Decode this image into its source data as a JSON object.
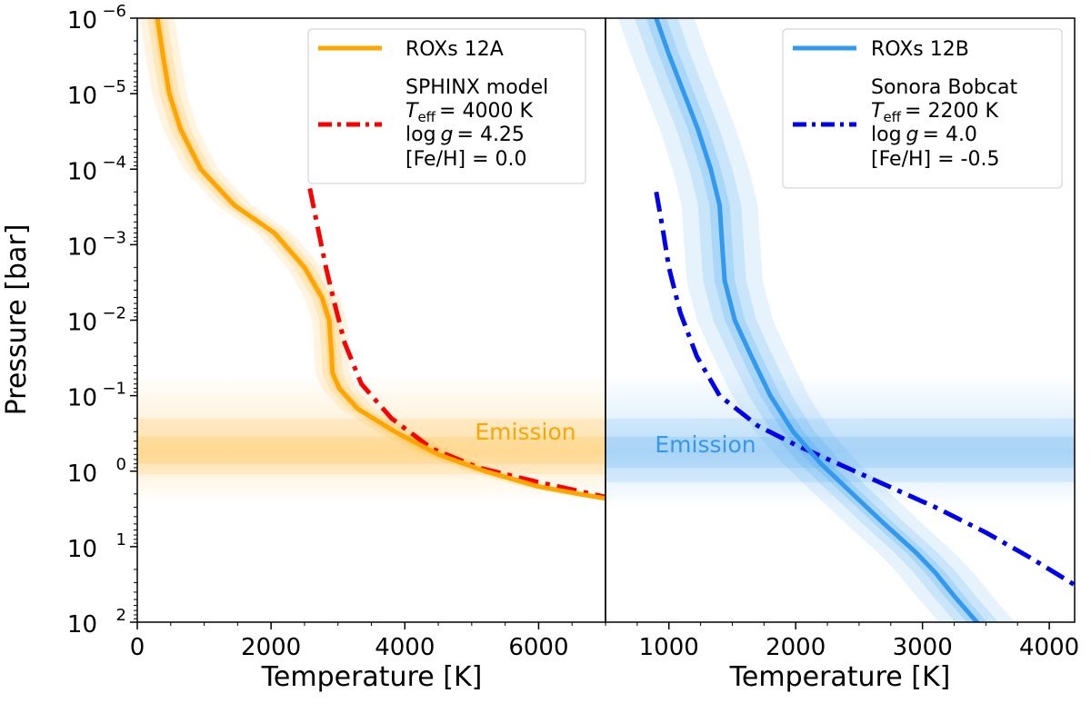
{
  "chart_data": [
    {
      "type": "line",
      "panel": "left",
      "xlabel": "Temperature [K]",
      "ylabel": "Pressure [bar]",
      "xlim": [
        0,
        7000
      ],
      "ylim": [
        1e-06,
        100
      ],
      "yscale": "log",
      "yaxis_inverted": true,
      "xticks": [
        0,
        2000,
        4000,
        6000
      ],
      "xtick_labels": [
        "0",
        "2000",
        "4000",
        "6000"
      ],
      "yticks": [
        1e-06,
        1e-05,
        0.0001,
        0.001,
        0.01,
        0.1,
        1,
        10,
        100
      ],
      "ytick_labels": [
        {
          "base": "10",
          "exp": "−6"
        },
        {
          "base": "10",
          "exp": "−5"
        },
        {
          "base": "10",
          "exp": "−4"
        },
        {
          "base": "10",
          "exp": "−3"
        },
        {
          "base": "10",
          "exp": "−2"
        },
        {
          "base": "10",
          "exp": "−1"
        },
        {
          "base": "10",
          "exp": "0"
        },
        {
          "base": "10",
          "exp": "1"
        },
        {
          "base": "10",
          "exp": "2"
        }
      ],
      "legend_position": "top-right",
      "series": [
        {
          "name": "ROXs 12A",
          "style": "solid",
          "color": "#FFA500",
          "points": [
            [
              300,
              1e-06
            ],
            [
              380,
              3e-06
            ],
            [
              480,
              1e-05
            ],
            [
              650,
              3e-05
            ],
            [
              950,
              0.0001
            ],
            [
              1450,
              0.0003
            ],
            [
              2050,
              0.0007
            ],
            [
              2500,
              0.002
            ],
            [
              2760,
              0.005
            ],
            [
              2870,
              0.01
            ],
            [
              2900,
              0.025
            ],
            [
              2920,
              0.05
            ],
            [
              3020,
              0.08
            ],
            [
              3300,
              0.15
            ],
            [
              3850,
              0.3
            ],
            [
              4500,
              0.6
            ],
            [
              5200,
              1.0
            ],
            [
              6000,
              1.6
            ],
            [
              6600,
              2.0
            ],
            [
              7000,
              2.3
            ]
          ],
          "band_widths": [
            70,
            150,
            260
          ]
        },
        {
          "name": "SPHINX model",
          "style": "dash-dot",
          "color": "#FF0000",
          "points": [
            [
              2580,
              0.00018
            ],
            [
              2700,
              0.0006
            ],
            [
              2820,
              0.002
            ],
            [
              2950,
              0.006
            ],
            [
              3100,
              0.02
            ],
            [
              3350,
              0.07
            ],
            [
              3800,
              0.2
            ],
            [
              4400,
              0.5
            ],
            [
              5100,
              0.9
            ],
            [
              6000,
              1.4
            ],
            [
              7000,
              2.2
            ]
          ]
        }
      ],
      "legend_entries": [
        {
          "name": "ROXs 12A"
        },
        {
          "lines": [
            "SPHINX model",
            "T_eff = 4000 K",
            "log g = 4.25",
            "[Fe/H] = 0.0"
          ]
        }
      ],
      "emission_band": {
        "label": "Emission",
        "center": 0.55,
        "core": [
          0.35,
          0.8
        ],
        "outer": [
          0.2,
          1.1
        ],
        "fade": [
          0.05,
          2.5
        ]
      }
    },
    {
      "type": "line",
      "panel": "right",
      "xlabel": "Temperature [K]",
      "ylabel": "",
      "xlim": [
        500,
        4200
      ],
      "ylim": [
        1e-06,
        100
      ],
      "yscale": "log",
      "yaxis_inverted": true,
      "xticks": [
        1000,
        2000,
        3000,
        4000
      ],
      "xtick_labels": [
        "1000",
        "2000",
        "3000",
        "4000"
      ],
      "legend_position": "top-right",
      "series": [
        {
          "name": "ROXs 12B",
          "style": "solid",
          "color": "#3399EE",
          "points": [
            [
              800,
              5e-07
            ],
            [
              900,
              1e-06
            ],
            [
              1000,
              3e-06
            ],
            [
              1120,
              1e-05
            ],
            [
              1230,
              3e-05
            ],
            [
              1330,
              0.0001
            ],
            [
              1400,
              0.0003
            ],
            [
              1420,
              0.001
            ],
            [
              1440,
              0.003
            ],
            [
              1520,
              0.01
            ],
            [
              1650,
              0.03
            ],
            [
              1800,
              0.1
            ],
            [
              1980,
              0.3
            ],
            [
              2200,
              0.8
            ],
            [
              2450,
              2
            ],
            [
              2700,
              5
            ],
            [
              2950,
              12
            ],
            [
              3100,
              22
            ],
            [
              3250,
              45
            ],
            [
              3450,
              110
            ]
          ],
          "band_widths": [
            80,
            170,
            300
          ]
        },
        {
          "name": "Sonora Bobcat",
          "style": "dash-dot",
          "color": "#0000EE",
          "points": [
            [
              900,
              0.0002
            ],
            [
              950,
              0.0006
            ],
            [
              1000,
              0.002
            ],
            [
              1090,
              0.008
            ],
            [
              1220,
              0.03
            ],
            [
              1400,
              0.1
            ],
            [
              1700,
              0.25
            ],
            [
              2000,
              0.45
            ],
            [
              2300,
              0.75
            ],
            [
              2700,
              1.5
            ],
            [
              3100,
              3
            ],
            [
              3500,
              6.5
            ],
            [
              3850,
              14
            ],
            [
              4200,
              32
            ]
          ]
        }
      ],
      "legend_entries": [
        {
          "name": "ROXs 12B"
        },
        {
          "lines": [
            "Sonora Bobcat",
            "T_eff = 2200 K",
            "log g = 4.0",
            "[Fe/H] = -0.5"
          ]
        }
      ],
      "emission_band": {
        "label": "Emission",
        "center": 0.55,
        "core": [
          0.35,
          0.9
        ],
        "outer": [
          0.2,
          1.4
        ],
        "fade": [
          0.05,
          3
        ]
      }
    }
  ],
  "legend_text": {
    "left": {
      "line1": "ROXs 12A",
      "line2": "SPHINX model",
      "teff_value": "= 4000 K",
      "logg_value": "= 4.25",
      "feh": "[Fe/H] = 0.0"
    },
    "right": {
      "line1": "ROXs 12B",
      "line2": "Sonora Bobcat",
      "teff_value": "= 2200 K",
      "logg_value": "= 4.0",
      "feh": "[Fe/H] = -0.5"
    },
    "teff_symbol": "T",
    "teff_subscript": "eff",
    "logg_prefix": "log",
    "logg_symbol": "g"
  },
  "emission_labels": {
    "left": "Emission",
    "right": "Emission"
  }
}
